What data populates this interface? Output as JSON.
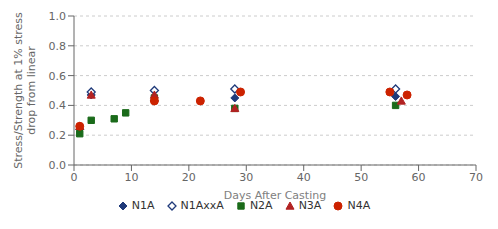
{
  "chart_data": {
    "type": "scatter",
    "title": "",
    "xlabel": "Days After Casting",
    "ylabel": "Stress/Strength at 1% stress\ndrop from linear",
    "xlim": [
      0,
      70
    ],
    "ylim": [
      0,
      1
    ],
    "xticks": [
      0,
      10,
      20,
      30,
      40,
      50,
      60,
      70
    ],
    "yticks": [
      {
        "value": 0,
        "label": "0.0"
      },
      0.2,
      0.4,
      0.6,
      0.8,
      {
        "value": 1,
        "label": "1.0"
      }
    ],
    "grid": "y",
    "legend": "bottom",
    "series": [
      {
        "name": "N1A",
        "color": "#1f3a7a",
        "marker": "diamond",
        "x": [
          1,
          3,
          14,
          28,
          56
        ],
        "values": [
          0.24,
          0.47,
          0.43,
          0.45,
          0.46
        ]
      },
      {
        "name": "N1AxxA",
        "color": "#1f3a7a",
        "marker": "diamond_open",
        "x": [
          3,
          14,
          28,
          56
        ],
        "values": [
          0.49,
          0.5,
          0.51,
          0.51
        ]
      },
      {
        "name": "N2A",
        "color": "#1a6b1a",
        "marker": "square",
        "x": [
          1,
          3,
          7,
          9,
          14,
          28,
          56
        ],
        "values": [
          0.21,
          0.3,
          0.31,
          0.35,
          0.45,
          0.38,
          0.4
        ]
      },
      {
        "name": "N3A",
        "color": "#b22222",
        "marker": "triangle",
        "x": [
          1,
          3,
          14,
          28,
          57
        ],
        "values": [
          0.26,
          0.47,
          0.47,
          0.38,
          0.43
        ]
      },
      {
        "name": "N4A",
        "color": "#cc2200",
        "marker": "circle",
        "x": [
          1,
          14,
          22,
          29,
          55,
          58
        ],
        "values": [
          0.26,
          0.43,
          0.43,
          0.49,
          0.49,
          0.47
        ]
      }
    ]
  }
}
